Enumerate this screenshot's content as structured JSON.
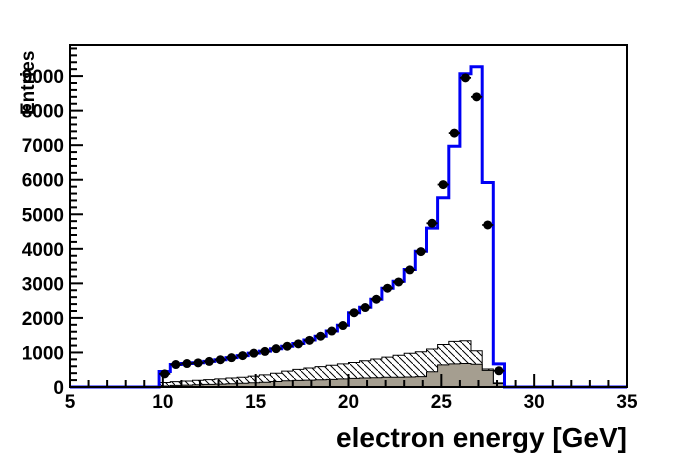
{
  "figure": {
    "background_color": "#ffffff",
    "frame_color": "#000000"
  },
  "chart_data": {
    "type": "bar",
    "subtype": "stepped-histogram-with-data-points",
    "title": "",
    "xlabel": "electron energy [GeV]",
    "ylabel": "Entries",
    "xlim": [
      5,
      35
    ],
    "ylim": [
      0,
      9900
    ],
    "x_ticks": [
      5,
      10,
      15,
      20,
      25,
      30,
      35
    ],
    "x_minor_step": 1,
    "y_ticks": [
      0,
      1000,
      2000,
      3000,
      4000,
      5000,
      6000,
      7000,
      8000,
      9000
    ],
    "y_minor_step": 200,
    "grid": false,
    "legend": "none",
    "bins": {
      "start": 9.8,
      "width": 0.6,
      "centers": [
        10.1,
        10.7,
        11.3,
        11.9,
        12.5,
        13.1,
        13.7,
        14.3,
        14.9,
        15.5,
        16.1,
        16.7,
        17.3,
        17.9,
        18.5,
        19.1,
        19.7,
        20.3,
        20.9,
        21.5,
        22.1,
        22.7,
        23.3,
        23.9,
        24.5,
        25.1,
        25.7,
        26.3,
        26.9,
        27.5,
        28.1
      ]
    },
    "series": [
      {
        "name": "total-mc-blue-outline",
        "style": "step-line",
        "color": "#0000f5",
        "line_width": 3,
        "values": [
          450,
          650,
          680,
          700,
          740,
          790,
          850,
          910,
          980,
          1040,
          1110,
          1180,
          1260,
          1360,
          1470,
          1620,
          1790,
          2150,
          2310,
          2540,
          2860,
          3060,
          3400,
          3930,
          4600,
          5480,
          6970,
          9070,
          9270,
          5920,
          670
        ]
      },
      {
        "name": "background-hatched",
        "style": "step-filled-hatched",
        "fill": "#ffffff",
        "hatch": "diagonal-backslash",
        "outline_color": "#000000",
        "values": [
          130,
          155,
          175,
          195,
          215,
          235,
          260,
          285,
          315,
          350,
          400,
          460,
          510,
          550,
          590,
          630,
          670,
          710,
          760,
          810,
          865,
          920,
          975,
          1020,
          1100,
          1230,
          1320,
          1340,
          1050,
          520,
          120
        ]
      },
      {
        "name": "background-solid-gray",
        "style": "step-filled",
        "fill": "#a59e90",
        "outline_color": "#000000",
        "values": [
          30,
          45,
          55,
          65,
          75,
          85,
          95,
          110,
          125,
          140,
          160,
          180,
          190,
          200,
          210,
          220,
          235,
          250,
          260,
          270,
          280,
          285,
          290,
          300,
          440,
          640,
          670,
          680,
          660,
          480,
          100
        ]
      },
      {
        "name": "data-points",
        "style": "scatter-errorbars",
        "marker": "filled-circle",
        "color": "#000000",
        "values": [
          380,
          650,
          680,
          700,
          740,
          790,
          850,
          910,
          980,
          1030,
          1110,
          1180,
          1250,
          1350,
          1470,
          1620,
          1780,
          2150,
          2300,
          2540,
          2860,
          3040,
          3390,
          3920,
          4740,
          5860,
          7350,
          8950,
          8400,
          4690,
          470
        ]
      }
    ]
  }
}
